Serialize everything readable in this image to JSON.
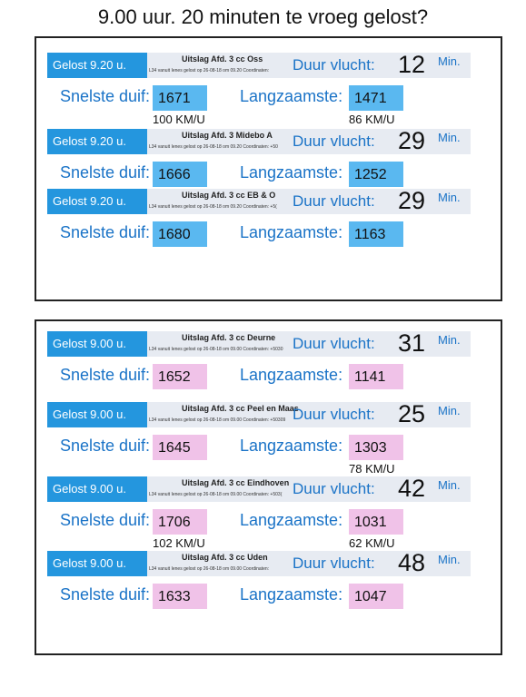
{
  "title": "9.00 uur. 20 minuten te vroeg gelost?",
  "boxes": [
    {
      "sections": [
        {
          "released": "Gelost 9.20 u.",
          "result_title": "Uitslag Afd. 3 cc Oss",
          "note": "L34 vanuit Ienes gelost op 26-08-18 om 09.20 Coordinaten:",
          "duration_label": "Duur vlucht:",
          "duration": "12",
          "unit": "Min.",
          "fastest_label": "Snelste duif:",
          "fastest": "1671",
          "slowest_label": "Langzaamste:",
          "slowest": "1471",
          "fastest_speed": "100 KM/U",
          "slowest_speed": "86 KM/U"
        },
        {
          "released": "Gelost 9.20 u.",
          "result_title": "Uitslag Afd. 3 Midebo A",
          "note": "L34 vanuit Ienes gelost op 26-08-18 om 09.20 Coordinaten: +50",
          "duration_label": "Duur vlucht:",
          "duration": "29",
          "unit": "Min.",
          "fastest_label": "Snelste duif:",
          "fastest": "1666",
          "slowest_label": "Langzaamste:",
          "slowest": "1252"
        },
        {
          "released": "Gelost 9.20 u.",
          "result_title": "Uitslag Afd. 3 cc EB & O",
          "note": "L34 vanuit Ienes gelost op 26-08-18 om 09.20 Coordinaten: +5(",
          "duration_label": "Duur vlucht:",
          "duration": "29",
          "unit": "Min.",
          "fastest_label": "Snelste duif:",
          "fastest": "1680",
          "slowest_label": "Langzaamste:",
          "slowest": "1163"
        }
      ]
    },
    {
      "sections": [
        {
          "released": "Gelost 9.00 u.",
          "result_title": "Uitslag Afd. 3 cc Deurne",
          "note": "L34 vanuit Ienes gelost op 26-08-18 om 09.00 Coordinaten: +5030",
          "duration_label": "Duur vlucht:",
          "duration": "31",
          "unit": "Min.",
          "fastest_label": "Snelste duif:",
          "fastest": "1652",
          "slowest_label": "Langzaamste:",
          "slowest": "1141"
        },
        {
          "released": "Gelost 9.00 u.",
          "result_title": "Uitslag Afd. 3 cc Peel en Maas",
          "note": "L34 vanuit Ienes gelost op 26-08-18 om 09.00 Coordinaten: +50309",
          "duration_label": "Duur vlucht:",
          "duration": "25",
          "unit": "Min.",
          "fastest_label": "Snelste duif:",
          "fastest": "1645",
          "slowest_label": "Langzaamste:",
          "slowest": "1303",
          "slowest_speed": "78 KM/U"
        },
        {
          "released": "Gelost 9.00 u.",
          "result_title": "Uitslag Afd. 3 cc Eindhoven",
          "note": "L34 vanuit Ienes gelost op 26-08-18 om 09.00 Coordinaten: +503(",
          "duration_label": "Duur vlucht:",
          "duration": "42",
          "unit": "Min.",
          "fastest_label": "Snelste duif:",
          "fastest": "1706",
          "slowest_label": "Langzaamste:",
          "slowest": "1031",
          "fastest_speed": "102 KM/U",
          "slowest_speed": "62 KM/U"
        },
        {
          "released": "Gelost 9.00 u.",
          "result_title": "Uitslag Afd. 3 cc Uden",
          "note": "L34 vanuit Ienes gelost op 26-08-18 om 09.00 Coordinaten:",
          "duration_label": "Duur vlucht:",
          "duration": "48",
          "unit": "Min.",
          "fastest_label": "Snelste duif:",
          "fastest": "1633",
          "slowest_label": "Langzaamste:",
          "slowest": "1047"
        }
      ]
    }
  ]
}
